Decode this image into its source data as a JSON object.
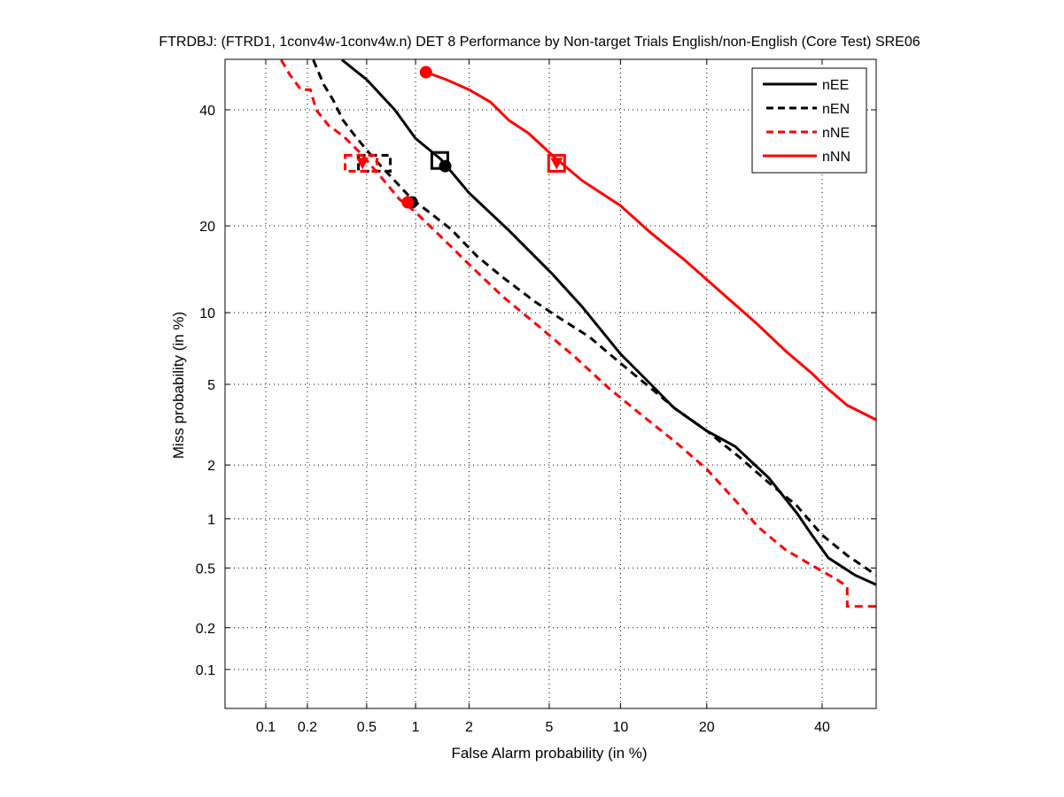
{
  "chart_data": {
    "type": "line",
    "title": "FTRDBJ: (FTRD1, 1conv4w-1conv4w.n) DET 8 Performance by Non-target Trials English/non-English (Core Test) SRE06",
    "xlabel": "False Alarm probability (in %)",
    "ylabel": "Miss probability (in %)",
    "x_scale": "normal-deviate",
    "y_scale": "normal-deviate",
    "xlim": [
      0.05,
      51
    ],
    "ylim": [
      0.05,
      50
    ],
    "xticks": [
      0.1,
      0.2,
      0.5,
      1,
      2,
      5,
      10,
      20,
      40
    ],
    "xtick_labels": [
      "0.1",
      "0.2",
      "0.5",
      "1",
      "2",
      "5",
      "10",
      "20",
      "40"
    ],
    "yticks": [
      0.1,
      0.2,
      0.5,
      1,
      2,
      5,
      10,
      20,
      40
    ],
    "ytick_labels": [
      "0.1",
      "0.2",
      "0.5",
      "1",
      "2",
      "5",
      "10",
      "20",
      "40"
    ],
    "grid": true,
    "legend_position": "top-right",
    "series": [
      {
        "name": "nEE",
        "color": "#000000",
        "style": "solid",
        "x": [
          0.345,
          0.5,
          0.75,
          1.0,
          1.4,
          2.0,
          3.2,
          5.2,
          7.0,
          10,
          13,
          15.6,
          20,
          24.3,
          30,
          35.2,
          38,
          41.2,
          46.6,
          50.9
        ],
        "y": [
          50,
          46,
          40,
          34.5,
          30.7,
          25,
          19.4,
          13.8,
          10.5,
          6.8,
          5.0,
          3.9,
          3.0,
          2.5,
          1.7,
          1.07,
          0.8,
          0.58,
          0.45,
          0.39
        ],
        "markers": [
          {
            "shape": "square",
            "x": 1.38,
            "y": 30.5
          },
          {
            "shape": "circle",
            "x": 1.48,
            "y": 29.5
          }
        ]
      },
      {
        "name": "nEN",
        "color": "#000000",
        "style": "dashed",
        "x": [
          0.22,
          0.26,
          0.3,
          0.35,
          0.42,
          0.48,
          0.55,
          0.75,
          0.95,
          1.2,
          1.6,
          2.2,
          3.0,
          4.3,
          5.5,
          7.5,
          10,
          13,
          16,
          20,
          25,
          30,
          35,
          40,
          45,
          50.9
        ],
        "y": [
          50,
          45,
          42,
          38,
          35,
          33,
          31,
          27,
          24,
          22,
          19.5,
          16,
          13.5,
          11,
          9.6,
          8.0,
          6.2,
          4.8,
          3.8,
          3.0,
          2.2,
          1.6,
          1.2,
          0.8,
          0.6,
          0.45
        ],
        "markers": [
          {
            "shape": "square",
            "x": 0.56,
            "y": 30.0
          },
          {
            "shape": "circle",
            "x": 0.95,
            "y": 23.5
          }
        ]
      },
      {
        "name": "nNE",
        "color": "#ff0000",
        "style": "dashed",
        "x": [
          0.13,
          0.15,
          0.18,
          0.21,
          0.23,
          0.28,
          0.35,
          0.45,
          0.6,
          0.8,
          1.0,
          1.4,
          2.0,
          3.0,
          4.5,
          6.5,
          9.0,
          12,
          16,
          20,
          25,
          28,
          33,
          38,
          43,
          45,
          45,
          50.9
        ],
        "y": [
          50,
          47,
          44,
          44,
          40,
          37,
          35,
          32,
          28,
          24,
          22,
          18.5,
          15,
          11.5,
          8.8,
          6.6,
          4.8,
          3.6,
          2.6,
          1.9,
          1.2,
          0.9,
          0.65,
          0.52,
          0.42,
          0.38,
          0.28,
          0.28
        ],
        "markers": [
          {
            "shape": "square",
            "x": 0.46,
            "y": 30.0
          },
          {
            "shape": "triangle",
            "x": 0.47,
            "y": 30.0
          },
          {
            "shape": "circle",
            "x": 0.9,
            "y": 23.5
          }
        ]
      },
      {
        "name": "nNN",
        "color": "#ff0000",
        "style": "solid",
        "x": [
          1.15,
          1.5,
          2.0,
          2.6,
          3.2,
          4.0,
          5.3,
          7.0,
          10,
          13,
          17,
          22,
          28,
          33,
          38,
          41,
          45,
          50.9
        ],
        "y": [
          47.5,
          46,
          44,
          41.5,
          38,
          35.5,
          31,
          27,
          23,
          19,
          15.5,
          12,
          9.0,
          7.0,
          5.6,
          4.8,
          4.0,
          3.4
        ],
        "markers": [
          {
            "shape": "circle",
            "x": 1.15,
            "y": 47.5
          },
          {
            "shape": "square",
            "x": 5.4,
            "y": 30.0
          },
          {
            "shape": "triangle",
            "x": 5.4,
            "y": 30.0
          }
        ]
      }
    ]
  }
}
